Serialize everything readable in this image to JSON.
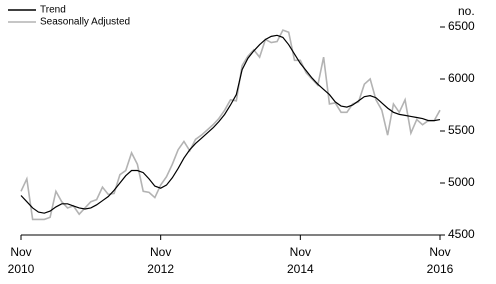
{
  "chart_data": {
    "type": "line",
    "y_label": "no.",
    "categories": [
      "Nov\n2010",
      null,
      null,
      null,
      null,
      null,
      null,
      null,
      null,
      null,
      null,
      null,
      null,
      null,
      null,
      null,
      null,
      null,
      null,
      null,
      null,
      null,
      null,
      null,
      "Nov\n2012",
      null,
      null,
      null,
      null,
      null,
      null,
      null,
      null,
      null,
      null,
      null,
      null,
      null,
      null,
      null,
      null,
      null,
      null,
      null,
      null,
      null,
      null,
      null,
      "Nov\n2014",
      null,
      null,
      null,
      null,
      null,
      null,
      null,
      null,
      null,
      null,
      null,
      null,
      null,
      null,
      null,
      null,
      null,
      null,
      null,
      null,
      null,
      null,
      null,
      "Nov\n2016"
    ],
    "series": [
      {
        "name": "Trend",
        "color": "#000000",
        "values": [
          4880,
          4820,
          4760,
          4720,
          4710,
          4730,
          4770,
          4800,
          4800,
          4780,
          4760,
          4750,
          4760,
          4790,
          4830,
          4870,
          4930,
          5000,
          5070,
          5120,
          5120,
          5100,
          5040,
          4970,
          4950,
          4980,
          5050,
          5140,
          5240,
          5320,
          5380,
          5430,
          5480,
          5530,
          5590,
          5660,
          5750,
          5850,
          6090,
          6200,
          6270,
          6330,
          6380,
          6410,
          6420,
          6400,
          6330,
          6240,
          6150,
          6080,
          6010,
          5950,
          5900,
          5850,
          5780,
          5740,
          5730,
          5750,
          5790,
          5830,
          5840,
          5820,
          5770,
          5720,
          5680,
          5660,
          5650,
          5640,
          5630,
          5620,
          5600,
          5600,
          5610
        ]
      },
      {
        "name": "Seasonally Adjusted",
        "color": "#b3b3b3",
        "values": [
          4920,
          5040,
          4650,
          4650,
          4650,
          4670,
          4920,
          4820,
          4760,
          4780,
          4700,
          4760,
          4820,
          4840,
          4960,
          4890,
          4900,
          5080,
          5120,
          5290,
          5180,
          4920,
          4910,
          4860,
          4980,
          5060,
          5180,
          5320,
          5400,
          5310,
          5420,
          5460,
          5510,
          5560,
          5620,
          5700,
          5800,
          5790,
          6130,
          6220,
          6280,
          6210,
          6380,
          6350,
          6360,
          6470,
          6450,
          6180,
          6180,
          6060,
          6000,
          5940,
          6210,
          5760,
          5770,
          5680,
          5680,
          5760,
          5780,
          5950,
          6000,
          5800,
          5700,
          5460,
          5760,
          5680,
          5800,
          5480,
          5610,
          5560,
          5600,
          5600,
          5700
        ]
      }
    ],
    "ylim": [
      4500,
      6500
    ],
    "yticks": [
      4500,
      5000,
      5500,
      6000,
      6500
    ],
    "legend": "upper-left"
  }
}
